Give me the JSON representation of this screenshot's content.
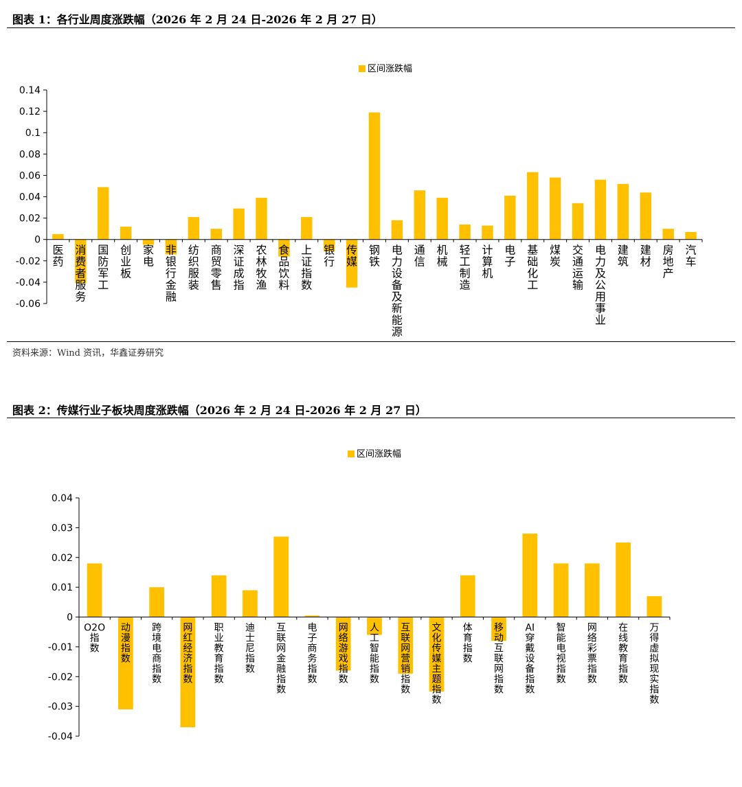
{
  "figures": [
    {
      "title": "图表 1：各行业周度涨跌幅（2026 年 2 月 24 日-2026 年 2 月 27 日）",
      "source": "资料来源：Wind 资讯，华鑫证券研究"
    },
    {
      "title": "图表 2：传媒行业子板块周度涨跌幅（2026 年 2 月 24 日-2026 年 2 月 27 日）"
    }
  ],
  "colors": {
    "bar": "#FFC000",
    "axis": "#000000"
  },
  "chart_data": [
    {
      "type": "bar",
      "legend": "区间涨跌幅",
      "legend_position": "top-center",
      "grid": false,
      "ylim": [
        -0.06,
        0.14
      ],
      "yticks": [
        "0.14",
        "0.12",
        "0.1",
        "0.08",
        "0.06",
        "0.04",
        "0.02",
        "0",
        "-0.02",
        "-0.04",
        "-0.06"
      ],
      "categories": [
        "医药",
        "消费者服务",
        "国防军工",
        "创业板",
        "家电",
        "非银行金融",
        "纺织服装",
        "商贸零售",
        "深证成指",
        "农林牧渔",
        "食品饮料",
        "上证指数",
        "银行",
        "传媒",
        "钢铁",
        "电力设备及新能源",
        "通信",
        "机械",
        "轻工制造",
        "计算机",
        "电子",
        "基础化工",
        "煤炭",
        "交通运输",
        "电力及公用事业",
        "建筑",
        "建材",
        "房地产",
        "汽车"
      ],
      "values": [
        0.005,
        -0.041,
        0.049,
        0.012,
        -0.005,
        -0.014,
        0.021,
        0.01,
        0.029,
        0.039,
        -0.016,
        0.021,
        -0.011,
        -0.045,
        0.119,
        0.018,
        0.046,
        0.039,
        0.014,
        0.013,
        0.041,
        0.063,
        0.058,
        0.034,
        0.056,
        0.052,
        0.044,
        0.01,
        0.007
      ]
    },
    {
      "type": "bar",
      "legend": "区间涨跌幅",
      "legend_position": "top-center",
      "grid": false,
      "ylim": [
        -0.04,
        0.04
      ],
      "yticks": [
        "0.04",
        "0.03",
        "0.02",
        "0.01",
        "0",
        "-0.01",
        "-0.02",
        "-0.03",
        "-0.04"
      ],
      "categories": [
        "O2O指数",
        "动漫指数",
        "跨境电商指数",
        "网红经济指数",
        "职业教育指数",
        "迪士尼指数",
        "互联网金融指数",
        "电子商务指数",
        "网络游戏指数",
        "人工智能指数",
        "互联网营销指数",
        "文化传媒主题指数",
        "体育指数",
        "移动互联网指数",
        "AI穿戴设备指数",
        "智能电视指数",
        "网络彩票指数",
        "在线教育指数",
        "万得虚拟现实指数"
      ],
      "values": [
        0.018,
        -0.031,
        0.01,
        -0.037,
        0.014,
        0.009,
        0.027,
        0.0005,
        -0.018,
        -0.006,
        -0.019,
        -0.025,
        0.014,
        -0.008,
        0.028,
        0.018,
        0.018,
        0.025,
        0.007
      ]
    }
  ]
}
